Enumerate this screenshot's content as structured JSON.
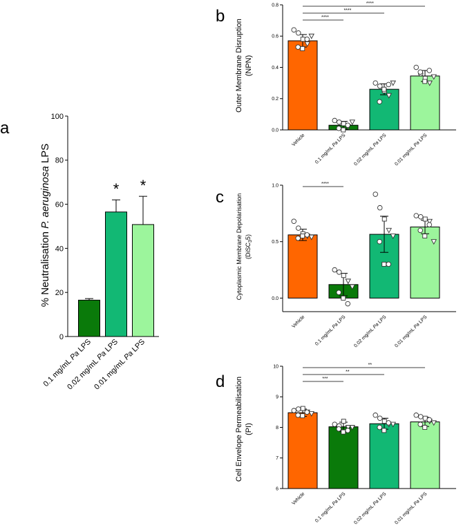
{
  "figure": {
    "colors": {
      "vehicle": "#ff6600",
      "c01": "#0a7a0a",
      "c002": "#12b874",
      "c0001": "#9cf59c"
    }
  },
  "chart_data": [
    {
      "panel": "a",
      "type": "bar",
      "ylabel_prefix": "% Neutralisation ",
      "ylabel_species": "P. aeruginosa",
      "ylabel_suffix": " LPS",
      "ylim": [
        0,
        100
      ],
      "yticks": [
        "0",
        "20",
        "40",
        "60",
        "80",
        "100"
      ],
      "categories": [
        {
          "pre": "0.1 mg/mL ",
          "em": "Pa",
          "post": " LPS"
        },
        {
          "pre": "0.02 mg/mL ",
          "em": "Pa",
          "post": " LPS"
        },
        {
          "pre": "0.01 mg/mL ",
          "em": "Pa",
          "post": " LPS"
        }
      ],
      "values": [
        16.5,
        56.5,
        50.8
      ],
      "errors": [
        0.7,
        5.5,
        12.8
      ],
      "colors": [
        "#0a7a0a",
        "#12b874",
        "#9cf59c"
      ],
      "annotations": [
        "",
        "*",
        "*"
      ]
    },
    {
      "panel": "b",
      "type": "bar",
      "ylabel_line1": "Outer Membrane Disruption",
      "ylabel_line2": "(NPN)",
      "ylim": [
        0,
        0.8
      ],
      "yticks": [
        "0.0",
        "0.2",
        "0.4",
        "0.6",
        "0.8"
      ],
      "categories": [
        {
          "pre": "Vehicle",
          "em": "",
          "post": ""
        },
        {
          "pre": "0.1 mg/mL ",
          "em": "Pa",
          "post": " LPS"
        },
        {
          "pre": "0.02 mg/mL ",
          "em": "Pa",
          "post": " LPS"
        },
        {
          "pre": "0.01 mg/mL ",
          "em": "Pa",
          "post": " LPS"
        }
      ],
      "values": [
        0.57,
        0.03,
        0.26,
        0.345
      ],
      "errors": [
        0.04,
        0.025,
        0.035,
        0.035
      ],
      "colors": [
        "#ff6600",
        "#0a7a0a",
        "#12b874",
        "#9cf59c"
      ],
      "points": [
        [
          0.64,
          0.62,
          0.58,
          0.55,
          0.53,
          0.52,
          0.58,
          0.6
        ],
        [
          0.06,
          0.05,
          0.04,
          0.02,
          0.01,
          0.0,
          0.03,
          0.05
        ],
        [
          0.3,
          0.28,
          0.25,
          0.22,
          0.18,
          0.26,
          0.29,
          0.3
        ],
        [
          0.4,
          0.36,
          0.33,
          0.3,
          0.37,
          0.31,
          0.38,
          0.34
        ]
      ],
      "comparisons": [
        {
          "from": 0,
          "to": 1,
          "label": "****"
        },
        {
          "from": 0,
          "to": 2,
          "label": "****"
        },
        {
          "from": 0,
          "to": 3,
          "label": "****"
        }
      ]
    },
    {
      "panel": "c",
      "type": "bar",
      "ylabel_line1": "Cytoplasmic Membrane Depolarisation",
      "ylabel_line2": "(DiSC",
      "ylabel_sub": "3",
      "ylabel_line2_end": "5)",
      "ylim": [
        -0.12,
        1.0
      ],
      "yticks": [
        "0.0",
        "0.5",
        "1.0"
      ],
      "ytick_values": [
        0,
        0.5,
        1.0
      ],
      "categories": [
        {
          "pre": "Vehicle",
          "em": "",
          "post": ""
        },
        {
          "pre": "0.1 mg/mL ",
          "em": "Pa",
          "post": " LPS"
        },
        {
          "pre": "0.02 mg/mL ",
          "em": "Pa",
          "post": " LPS"
        },
        {
          "pre": "0.01 mg/mL ",
          "em": "Pa",
          "post": " LPS"
        }
      ],
      "values": [
        0.56,
        0.12,
        0.565,
        0.63
      ],
      "errors": [
        0.05,
        0.1,
        0.16,
        0.06
      ],
      "colors": [
        "#ff6600",
        "#0a7a0a",
        "#12b874",
        "#9cf59c"
      ],
      "points": [
        [
          0.68,
          0.62,
          0.57,
          0.55,
          0.53,
          0.55,
          0.56,
          0.54
        ],
        [
          0.25,
          0.23,
          0.2,
          0.15,
          0.05,
          0.0,
          -0.05,
          0.1
        ],
        [
          0.92,
          0.8,
          0.7,
          0.6,
          0.5,
          0.3,
          0.3,
          0.55
        ],
        [
          0.73,
          0.72,
          0.7,
          0.68,
          0.6,
          0.55,
          0.65,
          0.5
        ]
      ],
      "comparisons": [
        {
          "from": 0,
          "to": 1,
          "label": "****"
        }
      ]
    },
    {
      "panel": "d",
      "type": "bar",
      "ylabel_line1": "Cell Envelope Permeabilisation",
      "ylabel_line2": "(PI)",
      "ylim": [
        6,
        10
      ],
      "yticks": [
        "6",
        "7",
        "8",
        "9",
        "10"
      ],
      "categories": [
        {
          "pre": "Vehicle",
          "em": "",
          "post": ""
        },
        {
          "pre": "0.1 mg/mL ",
          "em": "Pa",
          "post": " LPS"
        },
        {
          "pre": "0.02 mg/mL ",
          "em": "Pa",
          "post": " LPS"
        },
        {
          "pre": "0.01 mg/mL ",
          "em": "Pa",
          "post": " LPS"
        }
      ],
      "values": [
        8.48,
        8.02,
        8.12,
        8.18
      ],
      "errors": [
        0.12,
        0.15,
        0.18,
        0.15
      ],
      "colors": [
        "#ff6600",
        "#0a7a0a",
        "#12b874",
        "#9cf59c"
      ],
      "points": [
        [
          8.55,
          8.6,
          8.62,
          8.5,
          8.4,
          8.38,
          8.5,
          8.45
        ],
        [
          8.1,
          8.05,
          8.2,
          8.0,
          7.95,
          7.85,
          7.9,
          8.0
        ],
        [
          8.4,
          8.3,
          8.2,
          8.1,
          8.0,
          7.9,
          8.15,
          8.1
        ],
        [
          8.4,
          8.35,
          8.3,
          8.2,
          8.1,
          8.0,
          8.25,
          8.15
        ]
      ],
      "comparisons": [
        {
          "from": 0,
          "to": 1,
          "label": "***"
        },
        {
          "from": 0,
          "to": 2,
          "label": "**"
        },
        {
          "from": 0,
          "to": 3,
          "label": "**"
        }
      ]
    }
  ]
}
